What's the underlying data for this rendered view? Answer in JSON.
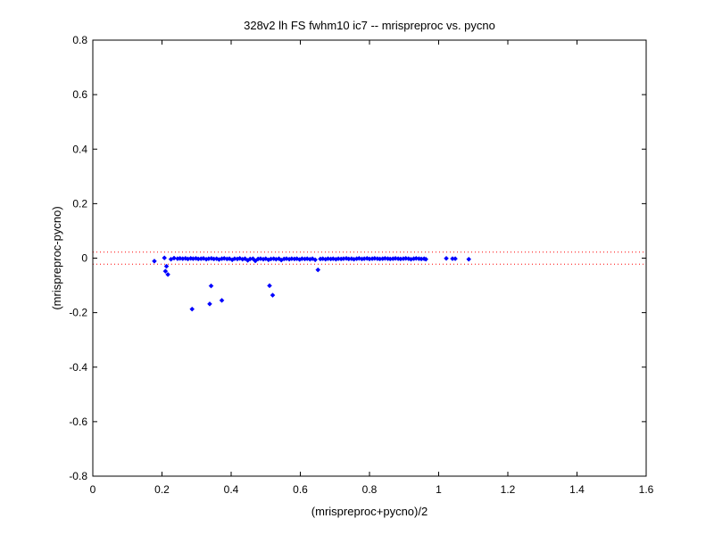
{
  "chart_data": {
    "type": "scatter",
    "title": "328v2 lh FS fwhm10 ic7 -- mrispreproc vs. pycno",
    "xlabel": "(mrispreproc+pycno)/2",
    "ylabel": "(mrispreproc-pycno)",
    "xlim": [
      0,
      1.6
    ],
    "ylim": [
      -0.8,
      0.8
    ],
    "xticks": [
      0,
      0.2,
      0.4,
      0.6,
      0.8,
      1,
      1.2,
      1.4,
      1.6
    ],
    "xtick_labels": [
      "0",
      "0.2",
      "0.4",
      "0.6",
      "0.8",
      "1",
      "1.2",
      "1.4",
      "1.6"
    ],
    "yticks": [
      -0.8,
      -0.6,
      -0.4,
      -0.2,
      0,
      0.2,
      0.4,
      0.6,
      0.8
    ],
    "ytick_labels": [
      "-0.8",
      "-0.6",
      "-0.4",
      "-0.2",
      "0",
      "0.2",
      "0.4",
      "0.6",
      "0.8"
    ],
    "grid": false,
    "colors": {
      "points": "#0000ff",
      "reference_lines": "#ff0000",
      "axes": "#000000"
    },
    "reference_lines": [
      {
        "y": 0.022,
        "style": "dotted"
      },
      {
        "y": -0.022,
        "style": "dotted"
      }
    ],
    "series": [
      {
        "marker": "diamond",
        "points": [
          [
            0.178,
            -0.011
          ],
          [
            0.207,
            0.001
          ],
          [
            0.21,
            -0.048
          ],
          [
            0.213,
            -0.03
          ],
          [
            0.217,
            -0.06
          ],
          [
            0.226,
            -0.004
          ],
          [
            0.287,
            -0.187
          ],
          [
            0.338,
            -0.168
          ],
          [
            0.342,
            -0.102
          ],
          [
            0.373,
            -0.155
          ],
          [
            0.511,
            -0.101
          ],
          [
            0.52,
            -0.136
          ],
          [
            0.651,
            -0.043
          ],
          [
            1.022,
            -0.001
          ],
          [
            1.04,
            -0.002
          ],
          [
            1.048,
            -0.002
          ],
          [
            1.087,
            -0.004
          ],
          [
            0.235,
            0.0
          ],
          [
            0.245,
            -0.002
          ],
          [
            0.252,
            -0.001
          ],
          [
            0.26,
            -0.002
          ],
          [
            0.268,
            -0.001
          ],
          [
            0.275,
            -0.003
          ],
          [
            0.283,
            -0.001
          ],
          [
            0.29,
            -0.002
          ],
          [
            0.298,
            -0.001
          ],
          [
            0.305,
            -0.003
          ],
          [
            0.313,
            -0.002
          ],
          [
            0.32,
            -0.001
          ],
          [
            0.328,
            -0.004
          ],
          [
            0.335,
            -0.002
          ],
          [
            0.343,
            -0.001
          ],
          [
            0.35,
            -0.003
          ],
          [
            0.358,
            -0.002
          ],
          [
            0.365,
            -0.005
          ],
          [
            0.373,
            -0.002
          ],
          [
            0.38,
            -0.001
          ],
          [
            0.388,
            -0.003
          ],
          [
            0.395,
            -0.002
          ],
          [
            0.403,
            -0.006
          ],
          [
            0.41,
            -0.002
          ],
          [
            0.418,
            -0.003
          ],
          [
            0.425,
            -0.001
          ],
          [
            0.433,
            -0.004
          ],
          [
            0.44,
            -0.002
          ],
          [
            0.448,
            -0.008
          ],
          [
            0.455,
            -0.003
          ],
          [
            0.463,
            -0.002
          ],
          [
            0.47,
            -0.01
          ],
          [
            0.478,
            -0.003
          ],
          [
            0.485,
            -0.002
          ],
          [
            0.493,
            -0.004
          ],
          [
            0.5,
            -0.002
          ],
          [
            0.508,
            -0.006
          ],
          [
            0.515,
            -0.003
          ],
          [
            0.523,
            -0.002
          ],
          [
            0.53,
            -0.004
          ],
          [
            0.538,
            -0.002
          ],
          [
            0.545,
            -0.007
          ],
          [
            0.553,
            -0.003
          ],
          [
            0.56,
            -0.002
          ],
          [
            0.568,
            -0.004
          ],
          [
            0.575,
            -0.002
          ],
          [
            0.583,
            -0.003
          ],
          [
            0.59,
            -0.002
          ],
          [
            0.598,
            -0.005
          ],
          [
            0.605,
            -0.002
          ],
          [
            0.613,
            -0.003
          ],
          [
            0.62,
            -0.002
          ],
          [
            0.628,
            -0.004
          ],
          [
            0.635,
            -0.002
          ],
          [
            0.643,
            -0.006
          ],
          [
            0.658,
            -0.003
          ],
          [
            0.665,
            -0.002
          ],
          [
            0.673,
            -0.004
          ],
          [
            0.68,
            -0.002
          ],
          [
            0.688,
            -0.003
          ],
          [
            0.695,
            -0.002
          ],
          [
            0.703,
            -0.004
          ],
          [
            0.71,
            -0.002
          ],
          [
            0.718,
            -0.003
          ],
          [
            0.725,
            -0.002
          ],
          [
            0.733,
            -0.001
          ],
          [
            0.74,
            -0.003
          ],
          [
            0.748,
            -0.002
          ],
          [
            0.755,
            -0.004
          ],
          [
            0.763,
            -0.002
          ],
          [
            0.77,
            -0.001
          ],
          [
            0.778,
            -0.003
          ],
          [
            0.785,
            -0.002
          ],
          [
            0.793,
            -0.001
          ],
          [
            0.8,
            -0.003
          ],
          [
            0.808,
            -0.002
          ],
          [
            0.815,
            -0.001
          ],
          [
            0.823,
            -0.002
          ],
          [
            0.83,
            -0.003
          ],
          [
            0.838,
            -0.002
          ],
          [
            0.845,
            -0.001
          ],
          [
            0.853,
            -0.002
          ],
          [
            0.86,
            -0.003
          ],
          [
            0.868,
            -0.002
          ],
          [
            0.875,
            -0.001
          ],
          [
            0.883,
            -0.002
          ],
          [
            0.89,
            -0.003
          ],
          [
            0.898,
            -0.002
          ],
          [
            0.905,
            -0.001
          ],
          [
            0.913,
            -0.002
          ],
          [
            0.92,
            -0.004
          ],
          [
            0.928,
            -0.002
          ],
          [
            0.935,
            -0.001
          ],
          [
            0.943,
            -0.002
          ],
          [
            0.95,
            -0.003
          ],
          [
            0.958,
            -0.002
          ],
          [
            0.963,
            -0.004
          ]
        ]
      }
    ]
  }
}
